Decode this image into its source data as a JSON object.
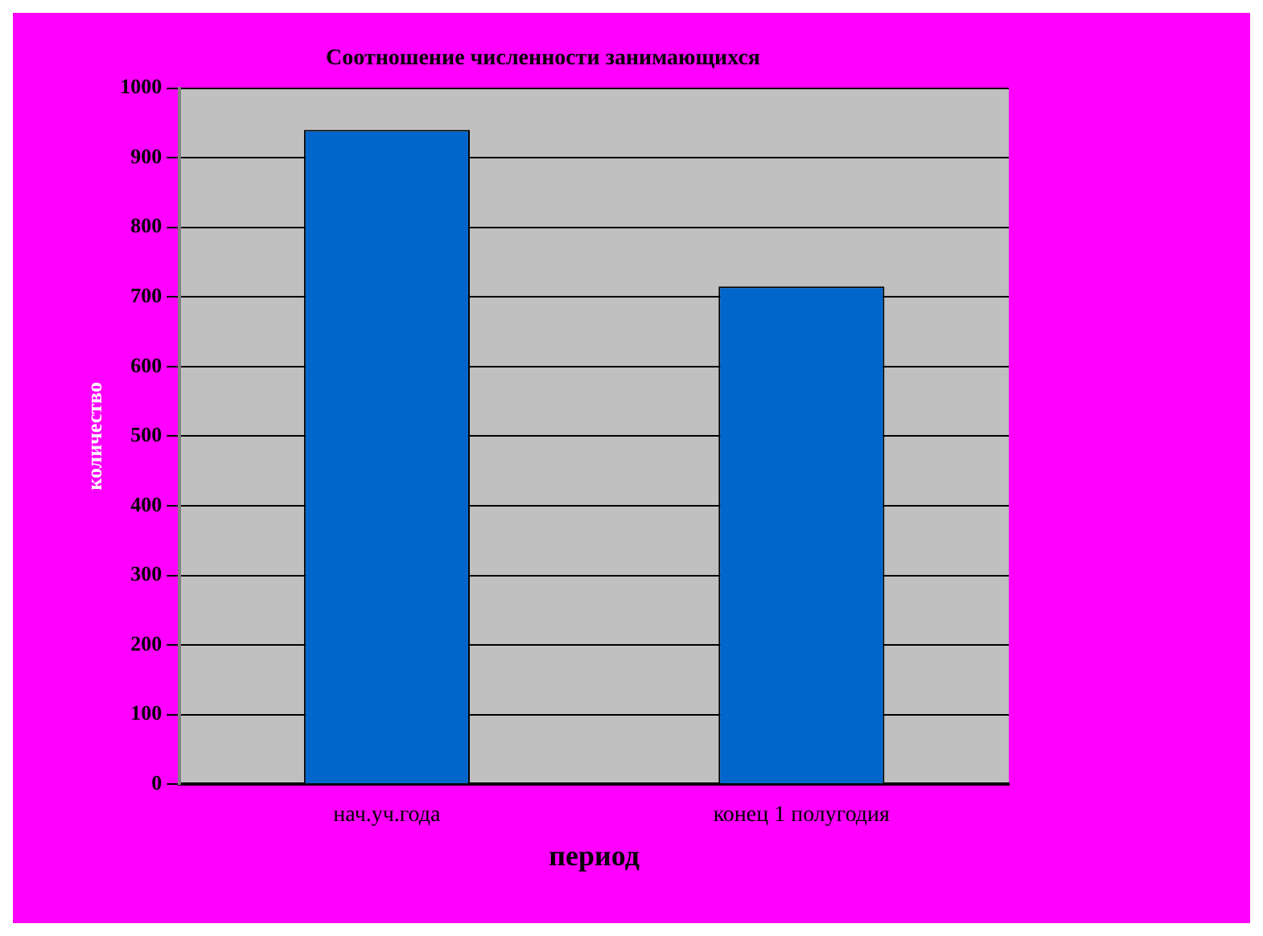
{
  "chart_data": {
    "type": "bar",
    "title": "Соотношение численности занимающихся",
    "xlabel": "период",
    "ylabel": "количество",
    "categories": [
      "нач.уч.года",
      "конец 1 полугодия"
    ],
    "values": [
      940,
      715
    ],
    "color": "#0066cc",
    "ylim": [
      0,
      1000
    ],
    "yticks": [
      0,
      100,
      200,
      300,
      400,
      500,
      600,
      700,
      800,
      900,
      1000
    ],
    "grid": "y"
  }
}
